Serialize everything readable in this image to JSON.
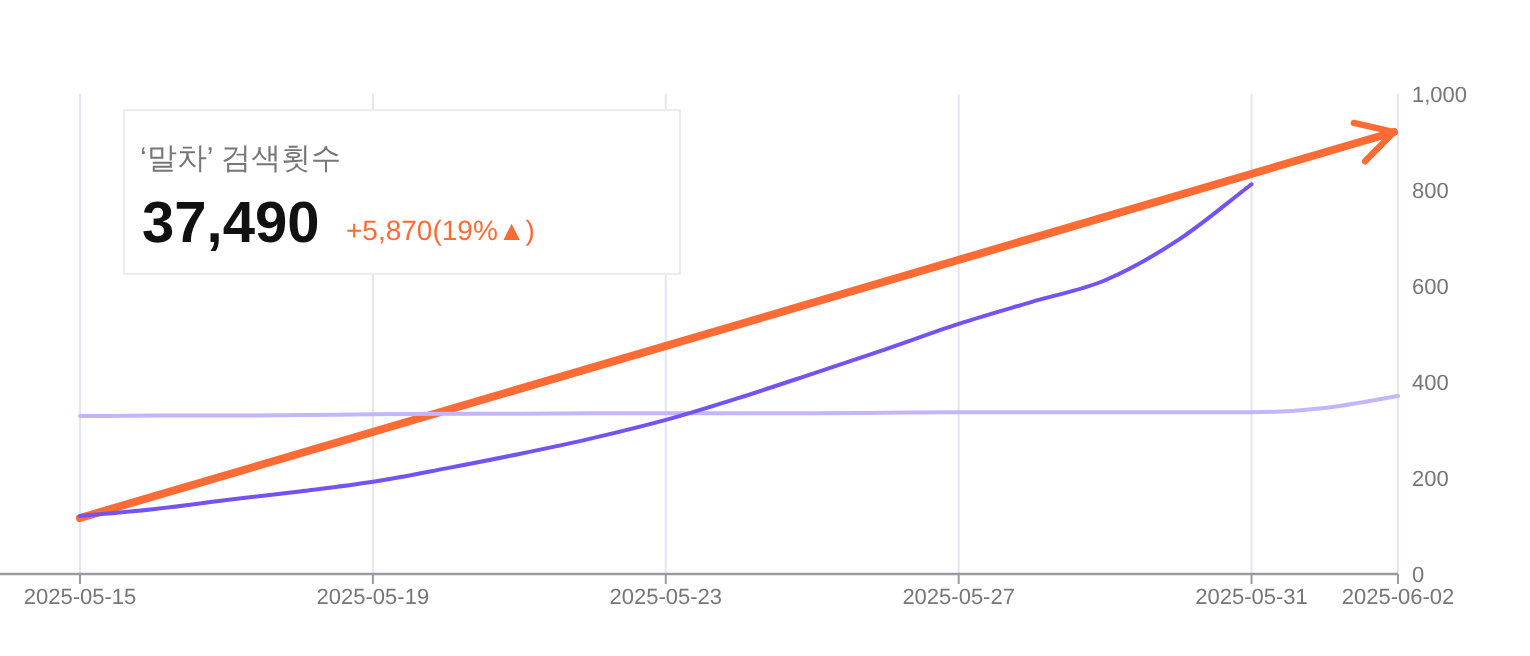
{
  "chart_data": {
    "type": "line",
    "x": [
      "2025-05-15",
      "2025-05-16",
      "2025-05-17",
      "2025-05-18",
      "2025-05-19",
      "2025-05-20",
      "2025-05-21",
      "2025-05-22",
      "2025-05-23",
      "2025-05-24",
      "2025-05-25",
      "2025-05-26",
      "2025-05-27",
      "2025-05-28",
      "2025-05-29",
      "2025-05-30",
      "2025-05-31",
      "2025-06-01",
      "2025-06-02"
    ],
    "series": [
      {
        "color": "#c4b5fd",
        "values": [
          329,
          330,
          330,
          331,
          333,
          334,
          334,
          335,
          335,
          335,
          335,
          336,
          337,
          337,
          337,
          337,
          337,
          346,
          371
        ]
      },
      {
        "color": "#7452f4",
        "values": [
          121,
          135,
          154,
          172,
          192,
          220,
          250,
          283,
          321,
          367,
          417,
          468,
          521,
          567,
          612,
          696,
          812,
          null,
          null
        ]
      }
    ],
    "xlim": [
      "2025-05-15",
      "2025-06-02"
    ],
    "xticks": [
      "2025-05-15",
      "2025-05-19",
      "2025-05-23",
      "2025-05-27",
      "2025-05-31",
      "2025-06-02"
    ],
    "ylim": [
      0,
      1000
    ],
    "yticks": [
      0,
      200,
      400,
      600,
      800,
      {
        "value": 1000,
        "label": "1,000"
      }
    ],
    "grid": "x",
    "annotations": [
      "‘말차’ 검색횟수",
      "37,490",
      "+5,870(19%▲)"
    ]
  }
}
